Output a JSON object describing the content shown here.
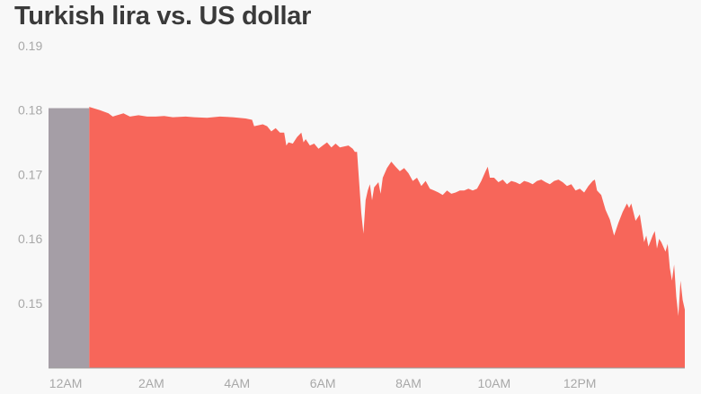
{
  "chart_data": {
    "type": "area",
    "title": "Turkish lira vs. US dollar",
    "xlabel": "",
    "ylabel": "",
    "ylim": [
      0.1385,
      0.19
    ],
    "y_ticks": [
      "0.19",
      "0.18",
      "0.17",
      "0.16",
      "0.15"
    ],
    "x_ticks": [
      "12AM",
      "2AM",
      "4AM",
      "6AM",
      "8AM",
      "10AM",
      "12PM"
    ],
    "grid": false,
    "colors": {
      "pre_market": "#a59ea6",
      "series": "#f7665a",
      "axis": "#9a9a9a",
      "tick_text": "#a8a8a8",
      "title": "#3a3a3a",
      "background": "#f8f8f8"
    },
    "x_range": [
      -0.4,
      14.45
    ],
    "pre_market_end": 0.55,
    "series": [
      {
        "x": [
          -0.4,
          0.55
        ],
        "y": [
          0.1803,
          0.1803
        ]
      },
      {
        "x": [
          0.55,
          0.8,
          1.0,
          1.1,
          1.2,
          1.35,
          1.5,
          1.7,
          1.9,
          2.1,
          2.3,
          2.5,
          2.8,
          3.0,
          3.3,
          3.6,
          3.9,
          4.2,
          4.35,
          4.4,
          4.6,
          4.7,
          4.8,
          4.9,
          5.0,
          5.1,
          5.15,
          5.2,
          5.3,
          5.4,
          5.5,
          5.55,
          5.6,
          5.7,
          5.8,
          5.9,
          6.0,
          6.1,
          6.2,
          6.3,
          6.4,
          6.6,
          6.7,
          6.75,
          6.8,
          6.9,
          6.95,
          7.0,
          7.05,
          7.1,
          7.15,
          7.2,
          7.3,
          7.35,
          7.4,
          7.5,
          7.6,
          7.7,
          7.8,
          7.9,
          8.0,
          8.1,
          8.2,
          8.3,
          8.4,
          8.5,
          8.6,
          8.7,
          8.8,
          8.9,
          9.0,
          9.1,
          9.2,
          9.3,
          9.4,
          9.5,
          9.6,
          9.7,
          9.8,
          9.85,
          9.9,
          10.0,
          10.1,
          10.2,
          10.3,
          10.4,
          10.5,
          10.6,
          10.7,
          10.8,
          10.9,
          11.0,
          11.1,
          11.2,
          11.3,
          11.4,
          11.5,
          11.6,
          11.7,
          11.8,
          11.9,
          12.0,
          12.1,
          12.2,
          12.3,
          12.35,
          12.4,
          12.5,
          12.6,
          12.7,
          12.8,
          12.9,
          13.0,
          13.1,
          13.15,
          13.2,
          13.3,
          13.4,
          13.5,
          13.55,
          13.6,
          13.7,
          13.75,
          13.8,
          13.85,
          13.9,
          14.0,
          14.05,
          14.1,
          14.15,
          14.2,
          14.25,
          14.3,
          14.35,
          14.4,
          14.45
        ],
        "y": [
          0.1805,
          0.18,
          0.1795,
          0.179,
          0.1792,
          0.1795,
          0.179,
          0.1792,
          0.179,
          0.179,
          0.1791,
          0.1789,
          0.179,
          0.1789,
          0.1788,
          0.179,
          0.1789,
          0.1787,
          0.1785,
          0.1775,
          0.1778,
          0.1775,
          0.1767,
          0.1772,
          0.1765,
          0.1765,
          0.1745,
          0.175,
          0.1748,
          0.1758,
          0.1765,
          0.175,
          0.1755,
          0.1745,
          0.1748,
          0.174,
          0.1745,
          0.175,
          0.1742,
          0.1748,
          0.1742,
          0.1745,
          0.174,
          0.1735,
          0.1735,
          0.164,
          0.1608,
          0.166,
          0.1675,
          0.1685,
          0.166,
          0.168,
          0.1688,
          0.167,
          0.1695,
          0.171,
          0.172,
          0.1712,
          0.1705,
          0.171,
          0.1702,
          0.169,
          0.1695,
          0.1682,
          0.169,
          0.1678,
          0.1675,
          0.1672,
          0.1668,
          0.1675,
          0.167,
          0.1672,
          0.1675,
          0.1675,
          0.1678,
          0.1675,
          0.1678,
          0.169,
          0.1705,
          0.1712,
          0.1695,
          0.1695,
          0.1688,
          0.1692,
          0.1685,
          0.169,
          0.1688,
          0.1685,
          0.169,
          0.1688,
          0.1685,
          0.169,
          0.1692,
          0.1688,
          0.1685,
          0.169,
          0.1692,
          0.1688,
          0.1682,
          0.1685,
          0.1675,
          0.1678,
          0.1672,
          0.1682,
          0.169,
          0.1692,
          0.1675,
          0.1668,
          0.1645,
          0.163,
          0.1605,
          0.1625,
          0.1642,
          0.1655,
          0.1648,
          0.1655,
          0.1628,
          0.1638,
          0.1595,
          0.1605,
          0.1588,
          0.1605,
          0.1612,
          0.1585,
          0.16,
          0.1595,
          0.158,
          0.1592,
          0.1555,
          0.1535,
          0.156,
          0.151,
          0.148,
          0.1535,
          0.1505,
          0.149
        ]
      }
    ]
  }
}
